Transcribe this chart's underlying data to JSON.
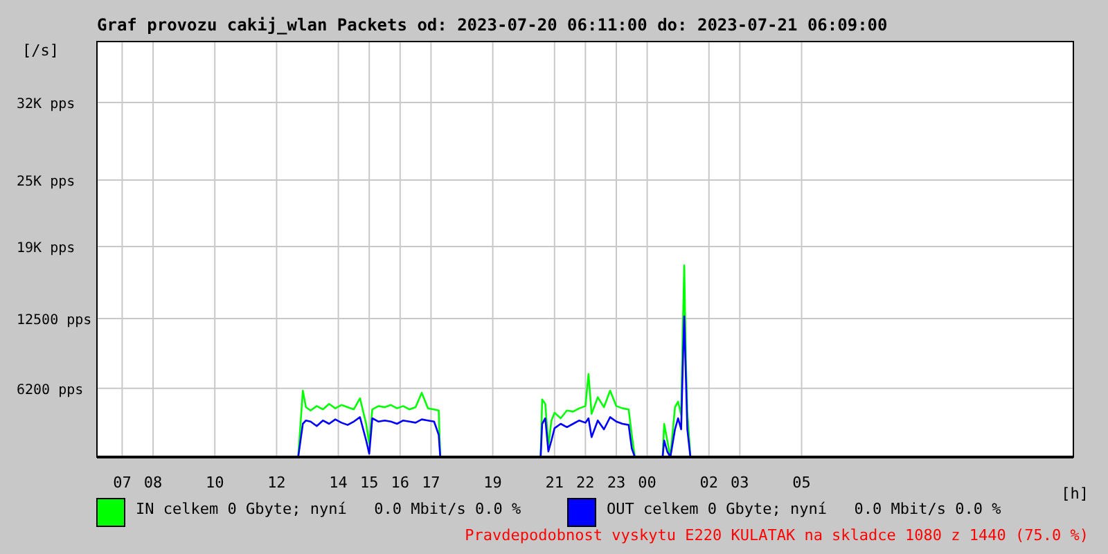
{
  "chart_data": {
    "type": "line",
    "title": "Graf provozu cakij_wlan Packets od: 2023-07-20 06:11:00 do: 2023-07-21 06:09:00",
    "ylabel": "[/s]",
    "xlabel": "[h]",
    "x": [
      "2023-07-20T06:12",
      "2023-07-20T12:42",
      "2023-07-20T12:51",
      "2023-07-20T12:57",
      "2023-07-20T13:06",
      "2023-07-20T13:18",
      "2023-07-20T13:30",
      "2023-07-20T13:42",
      "2023-07-20T13:54",
      "2023-07-20T14:06",
      "2023-07-20T14:18",
      "2023-07-20T14:30",
      "2023-07-20T14:42",
      "2023-07-20T14:54",
      "2023-07-20T15:00",
      "2023-07-20T15:06",
      "2023-07-20T15:18",
      "2023-07-20T15:30",
      "2023-07-20T15:42",
      "2023-07-20T15:54",
      "2023-07-20T16:06",
      "2023-07-20T16:18",
      "2023-07-20T16:30",
      "2023-07-20T16:42",
      "2023-07-20T16:54",
      "2023-07-20T17:06",
      "2023-07-20T17:15",
      "2023-07-20T17:18",
      "2023-07-20T20:33",
      "2023-07-20T20:36",
      "2023-07-20T20:42",
      "2023-07-20T20:48",
      "2023-07-20T20:54",
      "2023-07-20T21:00",
      "2023-07-20T21:12",
      "2023-07-20T21:24",
      "2023-07-20T21:36",
      "2023-07-20T21:48",
      "2023-07-20T22:00",
      "2023-07-20T22:06",
      "2023-07-20T22:12",
      "2023-07-20T22:24",
      "2023-07-20T22:36",
      "2023-07-20T22:48",
      "2023-07-20T23:00",
      "2023-07-20T23:12",
      "2023-07-20T23:24",
      "2023-07-20T23:30",
      "2023-07-20T23:36",
      "2023-07-21T00:30",
      "2023-07-21T00:33",
      "2023-07-21T00:39",
      "2023-07-21T00:45",
      "2023-07-21T00:54",
      "2023-07-21T01:00",
      "2023-07-21T01:06",
      "2023-07-21T01:09",
      "2023-07-21T01:12",
      "2023-07-21T01:15",
      "2023-07-21T01:18",
      "2023-07-21T01:24",
      "2023-07-21T06:09"
    ],
    "series": [
      {
        "name": "IN celkem 0 Gbyte; nyní   0.0 Mbit/s 0.0 %",
        "color": "#00ff00",
        "values": [
          0,
          0,
          6000,
          4500,
          4200,
          4600,
          4300,
          4800,
          4400,
          4700,
          4500,
          4300,
          5300,
          3000,
          1200,
          4300,
          4600,
          4500,
          4700,
          4400,
          4600,
          4300,
          4500,
          5800,
          4400,
          4300,
          4200,
          0,
          0,
          5200,
          4800,
          1000,
          3300,
          4000,
          3500,
          4200,
          4100,
          4400,
          4600,
          7500,
          3900,
          5400,
          4500,
          6000,
          4600,
          4400,
          4300,
          2000,
          0,
          0,
          3000,
          1500,
          0,
          4500,
          5000,
          3800,
          11000,
          17300,
          9000,
          4000,
          0,
          0
        ]
      },
      {
        "name": "OUT celkem 0 Gbyte; nyní   0.0 Mbit/s 0.0 %",
        "color": "#0000ff",
        "values": [
          0,
          0,
          3000,
          3300,
          3200,
          2800,
          3300,
          3000,
          3400,
          3100,
          2900,
          3200,
          3600,
          1500,
          300,
          3500,
          3200,
          3300,
          3200,
          3000,
          3300,
          3200,
          3100,
          3400,
          3300,
          3200,
          2000,
          0,
          0,
          3000,
          3500,
          500,
          1500,
          2600,
          3000,
          2700,
          3000,
          3300,
          3100,
          3500,
          1800,
          3300,
          2500,
          3600,
          3200,
          3000,
          2900,
          800,
          0,
          0,
          1500,
          500,
          0,
          2500,
          3500,
          2500,
          8000,
          12700,
          7500,
          2500,
          0,
          0
        ]
      }
    ],
    "xlim": [
      "2023-07-20T06:11",
      "2023-07-21T13:48"
    ],
    "xticks": [
      {
        "value": "2023-07-20T07:00",
        "label": "07"
      },
      {
        "value": "2023-07-20T08:00",
        "label": "08"
      },
      {
        "value": "2023-07-20T10:00",
        "label": "10"
      },
      {
        "value": "2023-07-20T12:00",
        "label": "12"
      },
      {
        "value": "2023-07-20T14:00",
        "label": "14"
      },
      {
        "value": "2023-07-20T15:00",
        "label": "15"
      },
      {
        "value": "2023-07-20T16:00",
        "label": "16"
      },
      {
        "value": "2023-07-20T17:00",
        "label": "17"
      },
      {
        "value": "2023-07-20T19:00",
        "label": "19"
      },
      {
        "value": "2023-07-20T21:00",
        "label": "21"
      },
      {
        "value": "2023-07-20T22:00",
        "label": "22"
      },
      {
        "value": "2023-07-20T23:00",
        "label": "23"
      },
      {
        "value": "2023-07-21T00:00",
        "label": "00"
      },
      {
        "value": "2023-07-21T02:00",
        "label": "02"
      },
      {
        "value": "2023-07-21T03:00",
        "label": "03"
      },
      {
        "value": "2023-07-21T05:00",
        "label": "05"
      }
    ],
    "ylim": [
      0,
      37500
    ],
    "yticks": [
      {
        "value": 6200,
        "label": "6200 pps"
      },
      {
        "value": 12500,
        "label": "12500 pps"
      },
      {
        "value": 19000,
        "label": "19K pps"
      },
      {
        "value": 25000,
        "label": "25K pps"
      },
      {
        "value": 32000,
        "label": "32K pps"
      }
    ],
    "grid": true,
    "legend": "bottom",
    "annotations": [
      "Pravdepodobnost vyskytu E220 KULATAK na skladce 1080 z 1440 (75.0 %)"
    ]
  }
}
